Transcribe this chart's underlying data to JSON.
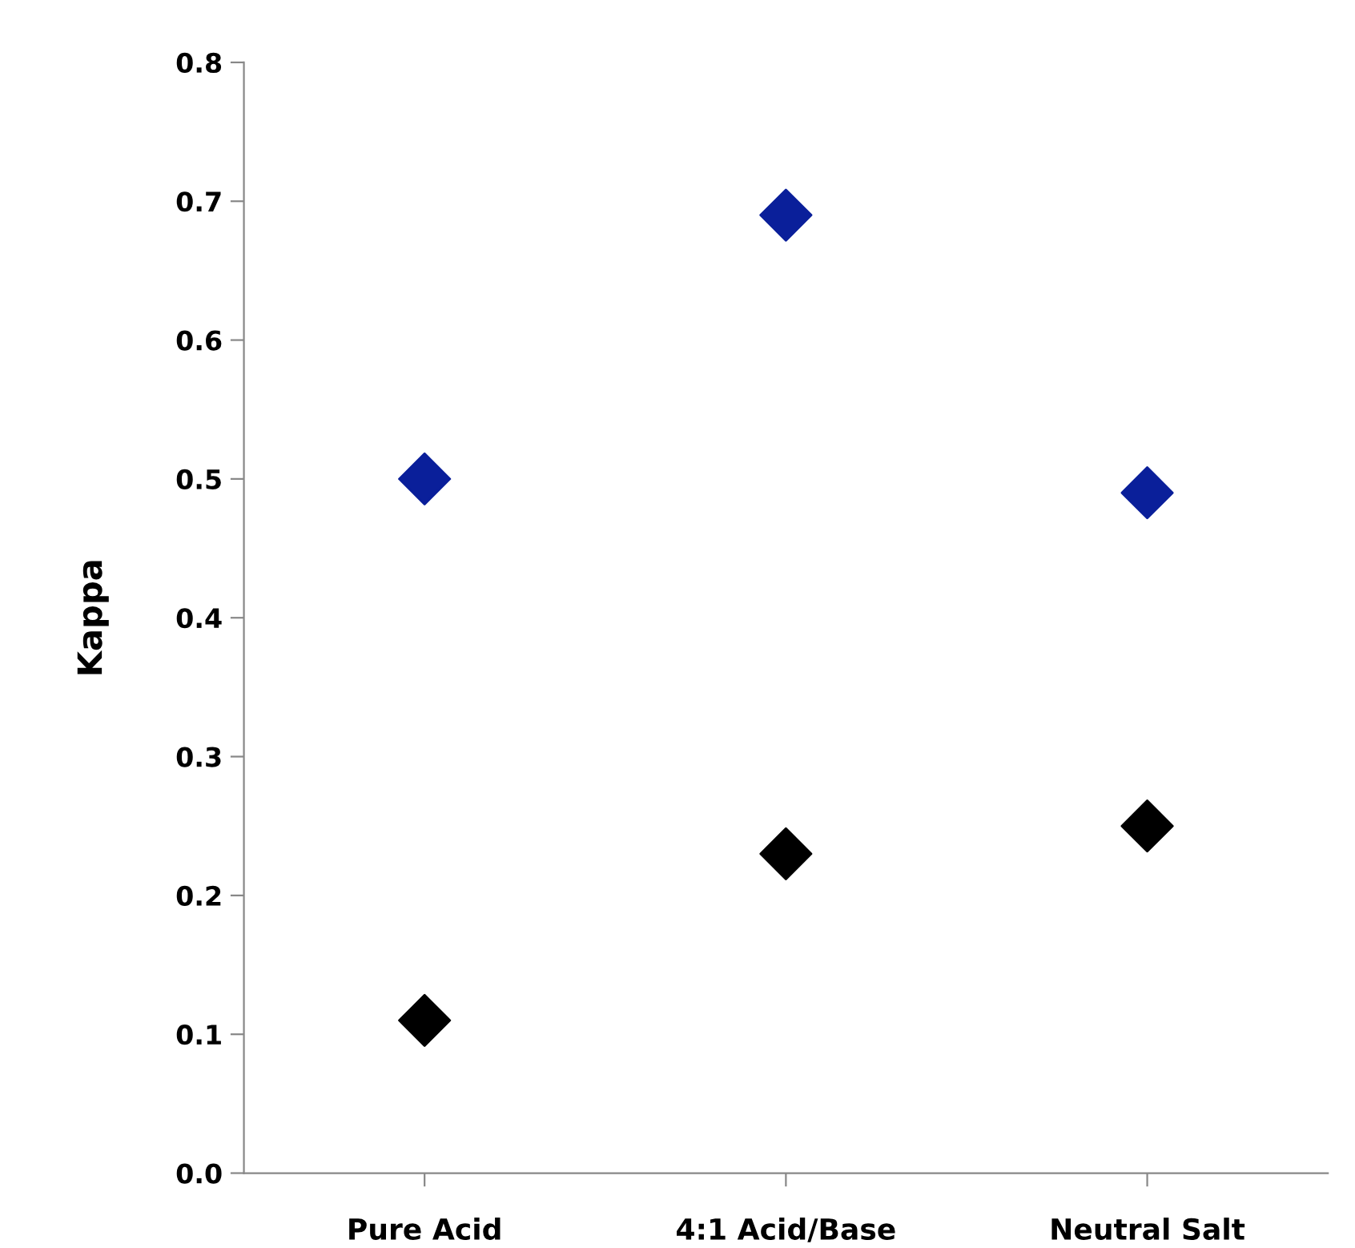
{
  "chart_data": {
    "type": "scatter",
    "ylabel": "Kappa",
    "categories": [
      "Pure Acid",
      "4:1 Acid/Base",
      "Neutral Salt"
    ],
    "series": [
      {
        "color": "#0a1f9a",
        "values": [
          0.5,
          0.69,
          0.49
        ]
      },
      {
        "color": "#000000",
        "values": [
          0.11,
          0.23,
          0.25
        ]
      }
    ],
    "marker": "diamond",
    "ylim": [
      0,
      0.8
    ],
    "yticks": [
      {
        "value": 0,
        "label": "0.0"
      },
      0.1,
      0.2,
      0.3,
      0.4,
      0.5,
      0.6,
      0.7,
      0.8
    ],
    "grid": false
  }
}
